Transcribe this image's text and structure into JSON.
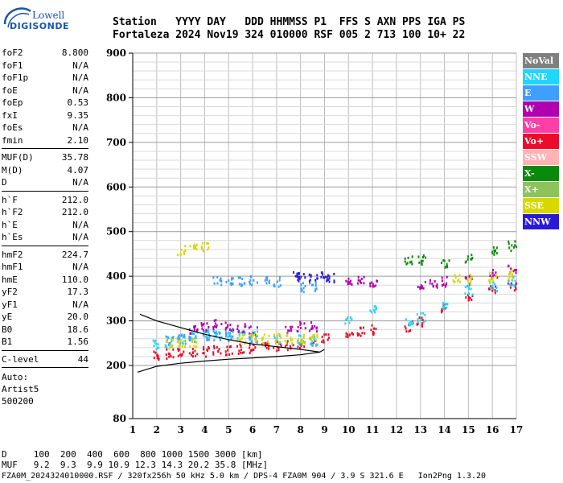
{
  "logo": {
    "line1": "Lowell",
    "line2": "DIGISONDE"
  },
  "header": {
    "labels": "Station   YYYY DAY   DDD HHMMSS P1  FFS S AXN PPS IGA PS",
    "values": "Fortaleza 2024 Nov19 324 010000 RSF 005 2 713 100 10+ 22"
  },
  "params": {
    "group1": [
      {
        "k": "foF2",
        "v": "8.800"
      },
      {
        "k": "foF1",
        "v": "N/A"
      },
      {
        "k": "foF1p",
        "v": "N/A"
      },
      {
        "k": "foE",
        "v": "N/A"
      },
      {
        "k": "foEp",
        "v": "0.53"
      },
      {
        "k": "fxI",
        "v": "9.35"
      },
      {
        "k": "foEs",
        "v": "N/A"
      },
      {
        "k": "fmin",
        "v": "2.10"
      }
    ],
    "group2": [
      {
        "k": "MUF(D)",
        "v": "35.78"
      },
      {
        "k": "M(D)",
        "v": "4.07"
      },
      {
        "k": "D",
        "v": "N/A"
      }
    ],
    "group3": [
      {
        "k": "h`F",
        "v": "212.0"
      },
      {
        "k": "h`F2",
        "v": "212.0"
      },
      {
        "k": "h`E",
        "v": "N/A"
      },
      {
        "k": "h`Es",
        "v": "N/A"
      }
    ],
    "group4": [
      {
        "k": "hmF2",
        "v": "224.7"
      },
      {
        "k": "hmF1",
        "v": "N/A"
      },
      {
        "k": "hmE",
        "v": "110.0"
      },
      {
        "k": "yF2",
        "v": "17.3"
      },
      {
        "k": "yF1",
        "v": "N/A"
      },
      {
        "k": "yE",
        "v": "20.0"
      },
      {
        "k": "B0",
        "v": "18.6"
      },
      {
        "k": "B1",
        "v": "1.56"
      }
    ],
    "group5": [
      {
        "k": "C-level",
        "v": "44"
      }
    ],
    "auto": [
      "Auto:",
      "Artist5",
      "500200"
    ]
  },
  "legend": [
    {
      "label": "NoVal",
      "color": "#7f7f7f"
    },
    {
      "label": "NNE",
      "color": "#1fd6ff"
    },
    {
      "label": "E",
      "color": "#3f9fff"
    },
    {
      "label": "W",
      "color": "#b000b0"
    },
    {
      "label": "Vo-",
      "color": "#ff3fa8"
    },
    {
      "label": "Vo+",
      "color": "#ee0a2a"
    },
    {
      "label": "SSW",
      "color": "#ffb3b3"
    },
    {
      "label": "X-",
      "color": "#0a8a0a"
    },
    {
      "label": "X+",
      "color": "#8cc35a"
    },
    {
      "label": "SSE",
      "color": "#d8d800"
    },
    {
      "label": "NNW",
      "color": "#2a1ad8"
    }
  ],
  "chart_data": {
    "type": "scatter",
    "xlim": [
      1,
      17
    ],
    "ylim": [
      80,
      900
    ],
    "x_ticks": [
      "1",
      "2",
      "3",
      "4",
      "5",
      "6",
      "7",
      "8",
      "9",
      "10",
      "11",
      "12",
      "13",
      "14",
      "15",
      "16",
      "17"
    ],
    "y_ticks": [
      "80",
      "200",
      "300",
      "400",
      "500",
      "600",
      "700",
      "800",
      "900"
    ],
    "grid": true,
    "traces": [
      {
        "series": "Vo+",
        "color": "#ee0a2a",
        "points": [
          [
            2.0,
            225
          ],
          [
            2.5,
            228
          ],
          [
            3.0,
            230
          ],
          [
            3.5,
            232
          ],
          [
            4.0,
            233
          ],
          [
            4.5,
            235
          ],
          [
            5.0,
            237
          ],
          [
            5.5,
            240
          ],
          [
            6.0,
            240
          ],
          [
            6.5,
            242
          ],
          [
            7.0,
            245
          ],
          [
            7.5,
            248
          ],
          [
            8.0,
            252
          ],
          [
            8.5,
            258
          ],
          [
            9.0,
            262
          ],
          [
            10.0,
            270
          ],
          [
            10.5,
            278
          ],
          [
            11.0,
            282
          ],
          [
            12.5,
            290
          ],
          [
            13.0,
            300
          ],
          [
            14.0,
            330
          ],
          [
            15.0,
            355
          ],
          [
            16.0,
            375
          ],
          [
            16.8,
            380
          ]
        ]
      },
      {
        "series": "NNE",
        "color": "#1fd6ff",
        "points": [
          [
            2.0,
            248
          ],
          [
            2.5,
            255
          ],
          [
            3.0,
            262
          ],
          [
            3.5,
            268
          ],
          [
            4.0,
            272
          ],
          [
            4.5,
            275
          ],
          [
            5.0,
            275
          ],
          [
            5.5,
            272
          ],
          [
            6.0,
            268
          ],
          [
            7.0,
            262
          ],
          [
            8.0,
            260
          ],
          [
            8.5,
            258
          ],
          [
            10.0,
            300
          ],
          [
            11.0,
            330
          ],
          [
            12.5,
            300
          ],
          [
            13.0,
            310
          ],
          [
            14.0,
            340
          ],
          [
            15.0,
            370
          ],
          [
            16.0,
            380
          ],
          [
            16.8,
            390
          ]
        ]
      },
      {
        "series": "E",
        "color": "#3f9fff",
        "points": [
          [
            2.5,
            258
          ],
          [
            3.0,
            262
          ],
          [
            3.5,
            265
          ],
          [
            4.0,
            270
          ],
          [
            4.5,
            270
          ],
          [
            5.0,
            268
          ],
          [
            6.0,
            262
          ],
          [
            4.5,
            392
          ],
          [
            5.0,
            392
          ],
          [
            5.5,
            392
          ],
          [
            6.0,
            393
          ],
          [
            6.5,
            393
          ],
          [
            7.0,
            390
          ],
          [
            8.0,
            378
          ],
          [
            8.5,
            380
          ]
        ]
      },
      {
        "series": "W",
        "color": "#b000b0",
        "points": [
          [
            3.5,
            280
          ],
          [
            4.0,
            290
          ],
          [
            4.5,
            295
          ],
          [
            5.0,
            290
          ],
          [
            5.5,
            285
          ],
          [
            6.0,
            280
          ],
          [
            7.5,
            285
          ],
          [
            8.0,
            290
          ],
          [
            8.5,
            290
          ],
          [
            10.0,
            392
          ],
          [
            10.5,
            390
          ],
          [
            11.0,
            388
          ],
          [
            13.0,
            380
          ],
          [
            13.5,
            385
          ],
          [
            14.0,
            390
          ],
          [
            15.0,
            395
          ],
          [
            16.0,
            410
          ],
          [
            16.8,
            420
          ]
        ]
      },
      {
        "series": "SSE",
        "color": "#d8d800",
        "points": [
          [
            3.0,
            460
          ],
          [
            3.5,
            465
          ],
          [
            4.0,
            470
          ],
          [
            2.5,
            250
          ],
          [
            3.0,
            255
          ],
          [
            3.5,
            255
          ],
          [
            5.5,
            262
          ],
          [
            6.0,
            262
          ],
          [
            6.5,
            262
          ],
          [
            7.0,
            262
          ],
          [
            7.5,
            262
          ],
          [
            8.0,
            262
          ],
          [
            8.5,
            262
          ],
          [
            14.5,
            400
          ],
          [
            15.0,
            395
          ],
          [
            16.0,
            400
          ],
          [
            16.8,
            405
          ]
        ]
      },
      {
        "series": "NNW",
        "color": "#2a1ad8",
        "points": [
          [
            7.8,
            402
          ],
          [
            8.0,
            402
          ],
          [
            8.5,
            402
          ],
          [
            9.0,
            402
          ],
          [
            9.2,
            400
          ]
        ]
      },
      {
        "series": "X-",
        "color": "#0a8a0a",
        "points": [
          [
            12.5,
            440
          ],
          [
            13.0,
            440
          ],
          [
            14.0,
            430
          ],
          [
            15.0,
            440
          ],
          [
            16.0,
            460
          ],
          [
            16.8,
            470
          ]
        ]
      }
    ],
    "profile_curves": [
      [
        [
          1.2,
          185
        ],
        [
          2.0,
          198
        ],
        [
          3.0,
          205
        ],
        [
          4.0,
          210
        ],
        [
          5.0,
          214
        ],
        [
          6.0,
          217
        ],
        [
          7.0,
          220
        ],
        [
          8.0,
          224
        ],
        [
          8.8,
          230
        ],
        [
          9.0,
          236
        ]
      ],
      [
        [
          1.3,
          315
        ],
        [
          2.0,
          300
        ],
        [
          3.0,
          285
        ],
        [
          4.0,
          270
        ],
        [
          5.0,
          258
        ],
        [
          6.0,
          248
        ],
        [
          7.0,
          242
        ],
        [
          8.0,
          236
        ],
        [
          8.8,
          230
        ]
      ]
    ],
    "scale_lines": [
      {
        "label": "D",
        "values": [
          "100",
          "200",
          "400",
          "600",
          "800",
          "1000",
          "1500",
          "3000",
          "[km]"
        ]
      },
      {
        "label": "MUF",
        "values": [
          "9.2",
          "9.3",
          "9.9",
          "10.9",
          "12.3",
          "14.3",
          "20.2",
          "35.8",
          "[MHz]"
        ]
      }
    ]
  },
  "footer": {
    "line1": "D     100  200  400  600  800 1000 1500 3000 [km]",
    "line2": "MUF   9.2  9.3  9.9 10.9 12.3 14.3 20.2 35.8 [MHz]",
    "line3": "FZA0M_2024324010000.RSF / 320fx256h 50 kHz 5.0 km / DPS-4 FZA0M 904 / 3.9 S 321.6 E   Ion2Png 1.3.20"
  }
}
